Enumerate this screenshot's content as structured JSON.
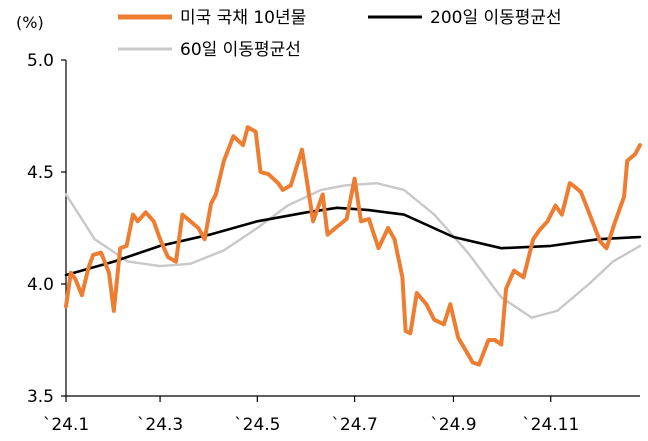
{
  "chart_data": {
    "type": "line",
    "unit": "(%)",
    "ylim": [
      3.5,
      5.0
    ],
    "y_ticks": [
      "5.0",
      "4.5",
      "4.0",
      "3.5"
    ],
    "y_tick_values": [
      5.0,
      4.5,
      4.0,
      3.5
    ],
    "x_range": [
      "2024-01-02",
      "2024-12-27"
    ],
    "x_ticks": [
      {
        "label": "`24.1",
        "date": "2024-01-02"
      },
      {
        "label": "`24.3",
        "date": "2024-03-01"
      },
      {
        "label": "`24.5",
        "date": "2024-05-01"
      },
      {
        "label": "`24.7",
        "date": "2024-07-01"
      },
      {
        "label": "`24.9",
        "date": "2024-09-01"
      },
      {
        "label": "`24.11",
        "date": "2024-11-01"
      }
    ],
    "grid": false,
    "legend_position": "top",
    "series": [
      {
        "name": "미국 국채 10년물",
        "color": "#ED7D31",
        "x": [
          "2024-01-02",
          "2024-01-05",
          "2024-01-08",
          "2024-01-12",
          "2024-01-16",
          "2024-01-19",
          "2024-01-24",
          "2024-01-29",
          "2024-02-01",
          "2024-02-05",
          "2024-02-09",
          "2024-02-13",
          "2024-02-16",
          "2024-02-21",
          "2024-02-26",
          "2024-03-01",
          "2024-03-06",
          "2024-03-11",
          "2024-03-15",
          "2024-03-20",
          "2024-03-25",
          "2024-03-29",
          "2024-04-02",
          "2024-04-05",
          "2024-04-10",
          "2024-04-16",
          "2024-04-22",
          "2024-04-25",
          "2024-04-30",
          "2024-05-03",
          "2024-05-08",
          "2024-05-14",
          "2024-05-17",
          "2024-05-22",
          "2024-05-29",
          "2024-05-31",
          "2024-06-05",
          "2024-06-11",
          "2024-06-14",
          "2024-06-19",
          "2024-06-26",
          "2024-07-01",
          "2024-07-05",
          "2024-07-10",
          "2024-07-16",
          "2024-07-22",
          "2024-07-26",
          "2024-07-31",
          "2024-08-02",
          "2024-08-05",
          "2024-08-09",
          "2024-08-15",
          "2024-08-20",
          "2024-08-26",
          "2024-08-30",
          "2024-09-04",
          "2024-09-09",
          "2024-09-13",
          "2024-09-17",
          "2024-09-23",
          "2024-09-27",
          "2024-10-01",
          "2024-10-04",
          "2024-10-09",
          "2024-10-15",
          "2024-10-21",
          "2024-10-25",
          "2024-10-30",
          "2024-11-04",
          "2024-11-08",
          "2024-11-13",
          "2024-11-15",
          "2024-11-20",
          "2024-11-26",
          "2024-12-02",
          "2024-12-06",
          "2024-12-11",
          "2024-12-17",
          "2024-12-19",
          "2024-12-24",
          "2024-12-27"
        ],
        "y": [
          3.9,
          4.05,
          4.02,
          3.95,
          4.07,
          4.13,
          4.14,
          4.05,
          3.88,
          4.16,
          4.17,
          4.31,
          4.28,
          4.32,
          4.28,
          4.2,
          4.12,
          4.1,
          4.31,
          4.28,
          4.25,
          4.2,
          4.36,
          4.4,
          4.55,
          4.66,
          4.62,
          4.7,
          4.68,
          4.5,
          4.49,
          4.45,
          4.42,
          4.44,
          4.6,
          4.51,
          4.28,
          4.4,
          4.22,
          4.25,
          4.29,
          4.47,
          4.28,
          4.29,
          4.16,
          4.25,
          4.2,
          4.03,
          3.79,
          3.78,
          3.96,
          3.91,
          3.84,
          3.82,
          3.91,
          3.76,
          3.7,
          3.65,
          3.64,
          3.75,
          3.75,
          3.73,
          3.98,
          4.06,
          4.03,
          4.2,
          4.24,
          4.28,
          4.35,
          4.31,
          4.45,
          4.44,
          4.41,
          4.3,
          4.19,
          4.16,
          4.27,
          4.39,
          4.55,
          4.58,
          4.62
        ]
      },
      {
        "name": "200일 이동평균선",
        "color": "#000000",
        "x": [
          "2024-01-02",
          "2024-02-01",
          "2024-03-01",
          "2024-04-01",
          "2024-05-01",
          "2024-06-01",
          "2024-06-20",
          "2024-07-10",
          "2024-08-01",
          "2024-09-01",
          "2024-10-01",
          "2024-11-01",
          "2024-12-01",
          "2024-12-27"
        ],
        "y": [
          4.04,
          4.1,
          4.17,
          4.22,
          4.28,
          4.32,
          4.34,
          4.33,
          4.31,
          4.21,
          4.16,
          4.17,
          4.2,
          4.21
        ]
      },
      {
        "name": "60일 이동평균선",
        "color": "#C8C8C8",
        "x": [
          "2024-01-02",
          "2024-01-20",
          "2024-02-10",
          "2024-03-01",
          "2024-03-20",
          "2024-04-10",
          "2024-05-01",
          "2024-05-20",
          "2024-06-10",
          "2024-06-25",
          "2024-07-15",
          "2024-08-01",
          "2024-08-20",
          "2024-09-10",
          "2024-10-01",
          "2024-10-20",
          "2024-11-05",
          "2024-11-25",
          "2024-12-10",
          "2024-12-27"
        ],
        "y": [
          4.4,
          4.2,
          4.1,
          4.08,
          4.09,
          4.15,
          4.25,
          4.35,
          4.42,
          4.44,
          4.45,
          4.42,
          4.31,
          4.14,
          3.94,
          3.85,
          3.88,
          4.0,
          4.1,
          4.17
        ]
      }
    ]
  }
}
